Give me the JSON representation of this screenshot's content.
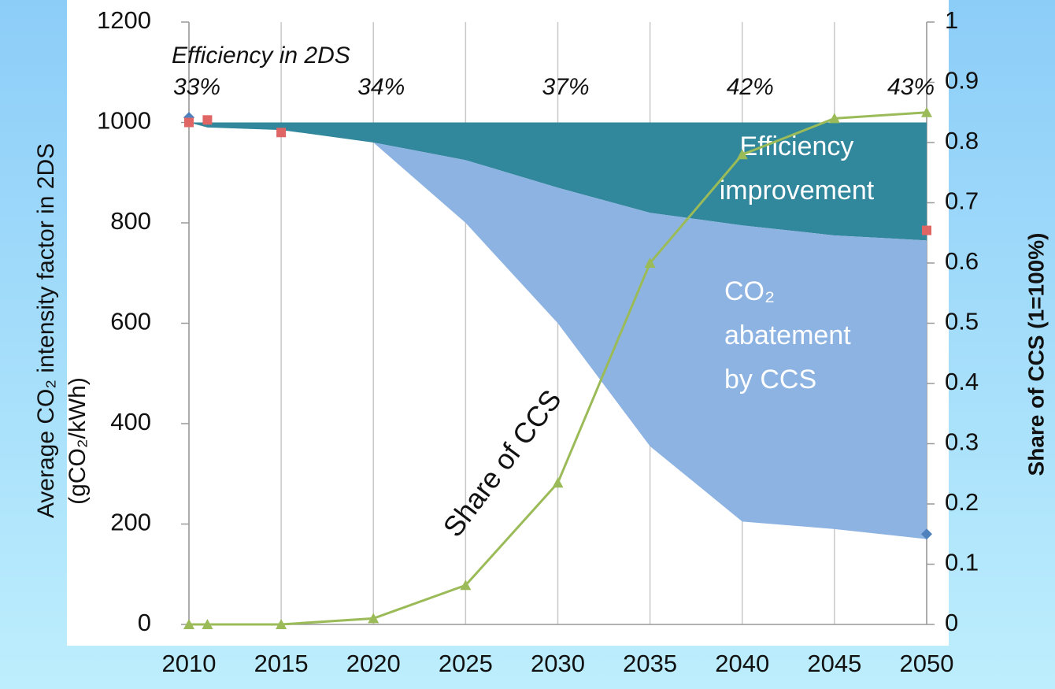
{
  "chart_data": {
    "type": "area",
    "ylabel": [
      "Average CO₂ intensity factor in 2DS",
      "(gCO₂/kWh)"
    ],
    "y2label": "Share of CCS (1=100%)",
    "xlim": [
      2010,
      2050
    ],
    "xticks": [
      2010,
      2015,
      2020,
      2025,
      2030,
      2035,
      2040,
      2045,
      2050
    ],
    "ylim": [
      0,
      1200
    ],
    "yticks": [
      0,
      200,
      400,
      600,
      800,
      1000,
      1200
    ],
    "y2lim": [
      0,
      1
    ],
    "y2ticks": [
      0,
      0.1,
      0.2,
      0.3,
      0.4,
      0.5,
      0.6,
      0.7,
      0.8,
      0.9,
      1
    ],
    "grid": true,
    "x": [
      2010,
      2011,
      2015,
      2020,
      2025,
      2030,
      2035,
      2040,
      2045,
      2050
    ],
    "bands": [
      {
        "color": "#31879b",
        "values": [
          1000,
          1000,
          1000,
          1000,
          1000,
          1000,
          1000,
          1000,
          1000,
          1000
        ]
      },
      {
        "color": "#8db3e2",
        "values": [
          1000,
          990,
          985,
          960,
          925,
          870,
          820,
          795,
          775,
          765
        ]
      },
      {
        "values": [
          1000,
          990,
          985,
          960,
          800,
          600,
          355,
          205,
          190,
          170
        ]
      }
    ],
    "band_labels": [
      [
        "Efficiency",
        "improvement"
      ],
      [
        "CO₂",
        "abatement",
        "by CCS"
      ]
    ],
    "series": [
      {
        "name": "Share of CCS",
        "type": "line",
        "axis": "y2",
        "color": "#9bbb59",
        "x": [
          2010,
          2011,
          2015,
          2020,
          2025,
          2030,
          2035,
          2040,
          2045,
          2050
        ],
        "values": [
          0,
          0,
          0,
          0.01,
          0.065,
          0.235,
          0.6,
          0.78,
          0.84,
          0.85
        ]
      },
      {
        "type": "scatter",
        "marker": "diamond",
        "color": "#4f81bd",
        "x": [
          2010,
          2050
        ],
        "values": [
          1010,
          180
        ]
      },
      {
        "type": "scatter",
        "marker": "square",
        "color": "#e06666",
        "x": [
          2010,
          2011,
          2015,
          2050
        ],
        "values": [
          1000,
          1005,
          980,
          785
        ]
      }
    ],
    "efficiency": {
      "title": "Efficiency in 2DS",
      "x": [
        2010,
        2020,
        2030,
        2040,
        2050
      ],
      "values": [
        33,
        34,
        37,
        42,
        43
      ],
      "value_labels": [
        "33%",
        "34%",
        "37%",
        "42%",
        "43%"
      ]
    }
  }
}
